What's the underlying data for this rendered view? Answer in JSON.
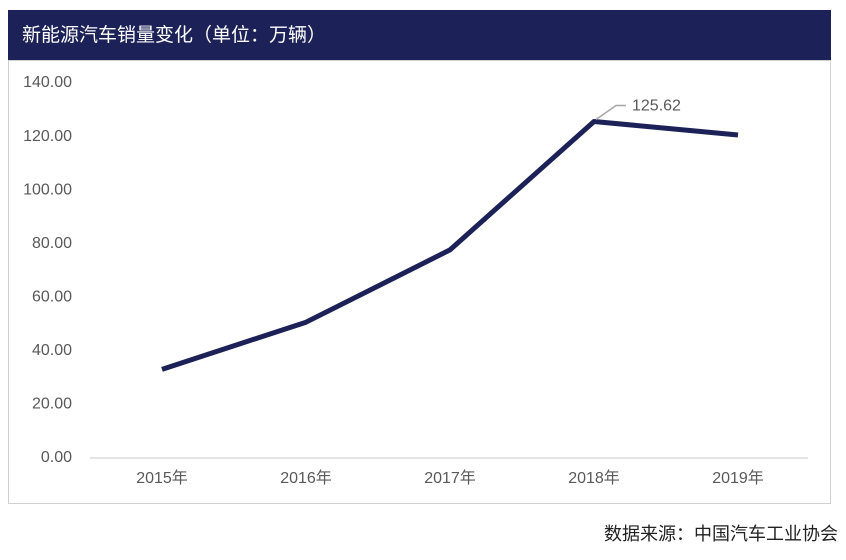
{
  "chart_data": {
    "type": "line",
    "title": "新能源汽车销量变化（单位：万辆）",
    "categories": [
      "2015年",
      "2016年",
      "2017年",
      "2018年",
      "2019年"
    ],
    "series": [
      {
        "color": "#1c2257",
        "values": [
          33.1,
          50.7,
          77.7,
          125.62,
          120.6
        ]
      }
    ],
    "data_label_index": 3,
    "ylim": [
      0,
      140
    ],
    "yticks": [
      {
        "value": 0,
        "label": "0.00"
      },
      {
        "value": 20,
        "label": "20.00"
      },
      {
        "value": 40,
        "label": "40.00"
      },
      {
        "value": 60,
        "label": "60.00"
      },
      {
        "value": 80,
        "label": "80.00"
      },
      {
        "value": 100,
        "label": "100.00"
      },
      {
        "value": 120,
        "label": "120.00"
      },
      {
        "value": 140,
        "label": "140.00"
      }
    ],
    "grid": false,
    "source": "数据来源：中国汽车工业协会"
  }
}
